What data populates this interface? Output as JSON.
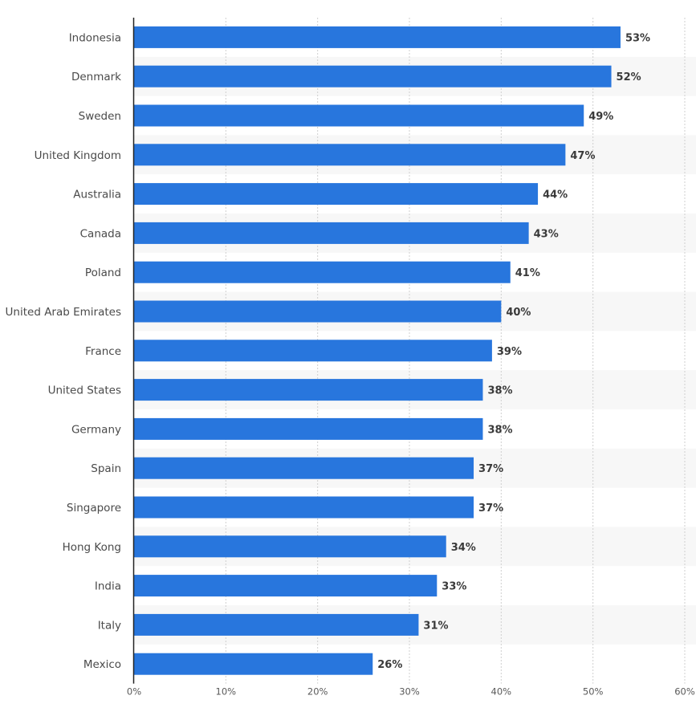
{
  "chart_data": {
    "type": "bar",
    "orientation": "horizontal",
    "categories": [
      "Indonesia",
      "Denmark",
      "Sweden",
      "United Kingdom",
      "Australia",
      "Canada",
      "Poland",
      "United Arab Emirates",
      "France",
      "United States",
      "Germany",
      "Spain",
      "Singapore",
      "Hong Kong",
      "India",
      "Italy",
      "Mexico"
    ],
    "values": [
      53,
      52,
      49,
      47,
      44,
      43,
      41,
      40,
      39,
      38,
      38,
      37,
      37,
      34,
      33,
      31,
      26
    ],
    "value_labels": [
      "53%",
      "52%",
      "49%",
      "47%",
      "44%",
      "43%",
      "41%",
      "40%",
      "39%",
      "38%",
      "38%",
      "37%",
      "37%",
      "34%",
      "33%",
      "31%",
      "26%"
    ],
    "xlim": [
      0,
      60
    ],
    "xticks": [
      0,
      10,
      20,
      30,
      40,
      50,
      60
    ],
    "xtick_labels": [
      "0%",
      "10%",
      "20%",
      "30%",
      "40%",
      "50%",
      "60%"
    ],
    "title": "",
    "xlabel": "",
    "ylabel": "",
    "grid": true,
    "alternating_row_bands": true,
    "colors": {
      "bar": "#2876dd",
      "band": "#f7f7f7",
      "grid": "#cfcfcf",
      "axis": "#222222"
    }
  }
}
